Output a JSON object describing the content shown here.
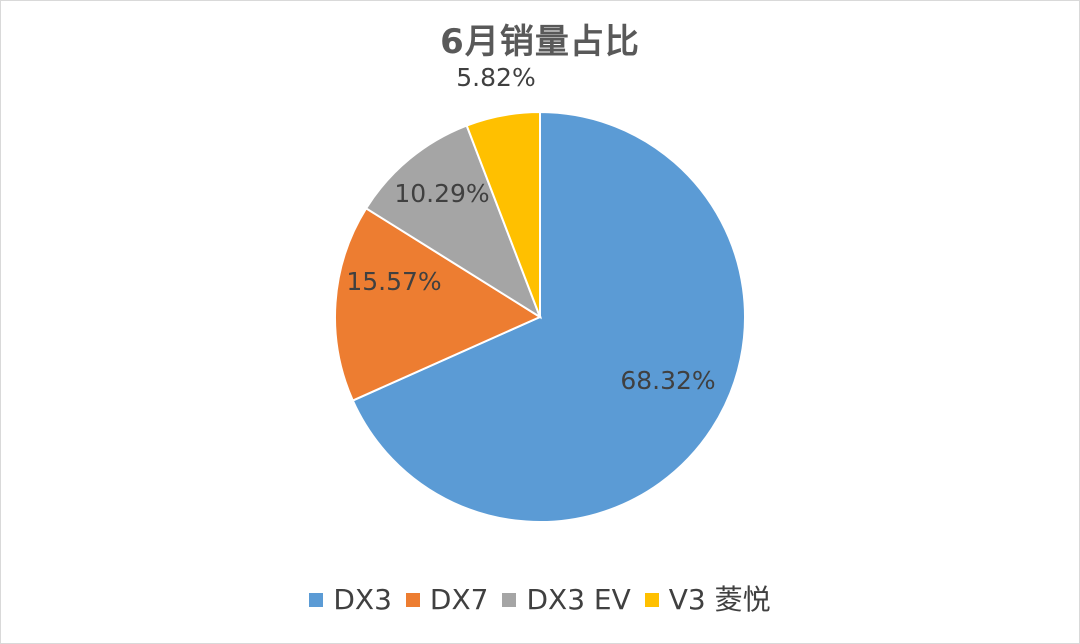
{
  "chart_data": {
    "type": "pie",
    "title": "6月销量占比",
    "categories": [
      "DX3",
      "DX7",
      "DX3 EV",
      "V3 菱悦"
    ],
    "values": [
      68.32,
      15.57,
      10.29,
      5.82
    ],
    "labels": [
      "68.32%",
      "15.57%",
      "10.29%",
      "5.82%"
    ],
    "colors": [
      "#5b9bd5",
      "#ed7d31",
      "#a5a5a5",
      "#ffc000"
    ],
    "start_angle": "12 o'clock",
    "direction": "clockwise",
    "legend": "bottom"
  }
}
